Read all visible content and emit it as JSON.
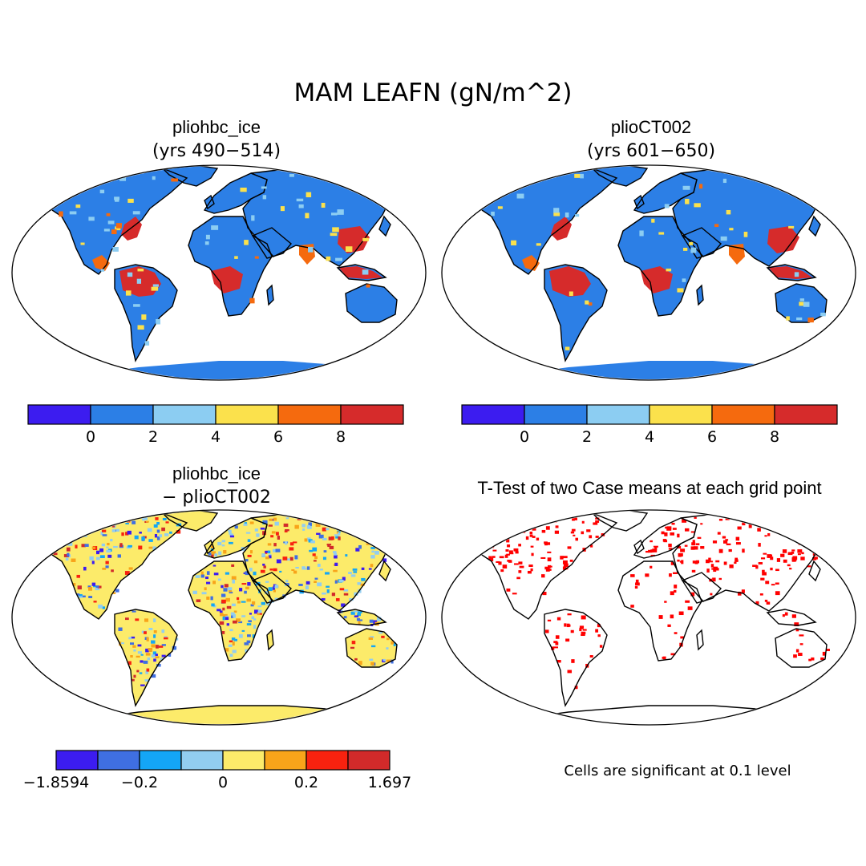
{
  "title": "MAM LEAFN (gN/m^2)",
  "panels": {
    "top_left": {
      "title": "pliohbc_ice",
      "subtitle": "(yrs 490−514)"
    },
    "top_right": {
      "title": "plioCT002",
      "subtitle": "(yrs 601−650)"
    },
    "bottom_left": {
      "title": "pliohbc_ice",
      "subtitle": "− plioCT002"
    },
    "bottom_right": {
      "title": "T-Test of two Case means at each grid point",
      "note": "Cells are significant at 0.1 level"
    }
  },
  "colorbar_top": {
    "colors": [
      "#3c1cf0",
      "#2c7fe6",
      "#8ccdf2",
      "#fbe14c",
      "#f56a0e",
      "#d62b2b"
    ],
    "ticks": [
      "0",
      "2",
      "4",
      "6",
      "8"
    ]
  },
  "colorbar_diff": {
    "colors": [
      "#3c1cf0",
      "#3f6fe2",
      "#14a6f6",
      "#92cdf0",
      "#fceb6a",
      "#f8a41a",
      "#f8220f",
      "#d22a2a"
    ],
    "ticks": [
      "−1.8594",
      "−0.2",
      "0",
      "0.2",
      "1.697"
    ]
  },
  "significance_color": "#ff0000",
  "land_colors": {
    "base_abs": "#2c7fe6",
    "high_abs": "#d62b2b",
    "mid_abs": "#f56a0e",
    "warm_abs": "#fbe14c",
    "light_abs": "#8ccdf2",
    "base_diff": "#fceb6a"
  }
}
